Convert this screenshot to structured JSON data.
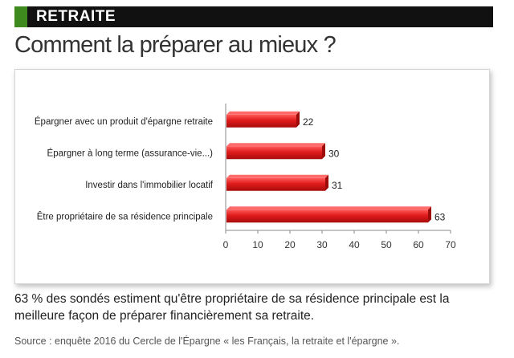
{
  "header": {
    "section": "RETRAITE",
    "title": "Comment la préparer au mieux ?",
    "accent_color": "#3f8a1f"
  },
  "chart_data": {
    "type": "bar",
    "orientation": "horizontal",
    "categories": [
      "Épargner avec un produit d'épargne retraite",
      "Épargner à long terme (assurance-vie...)",
      "Investir dans l'immobilier locatif",
      "Être propriétaire de sa résidence principale"
    ],
    "values": [
      22,
      30,
      31,
      63
    ],
    "xlim": [
      0,
      70
    ],
    "xticks": [
      0,
      10,
      20,
      30,
      40,
      50,
      60,
      70
    ],
    "bar_color": "#e01b1b",
    "title": "",
    "xlabel": "",
    "ylabel": ""
  },
  "caption": "63 % des sondés estiment qu'être propriétaire de sa résidence principale est la meilleure façon de préparer financièrement sa retraite.",
  "source": "Source : enquête 2016 du Cercle de l'Épargne « les Français, la retraite et l'épargne »."
}
